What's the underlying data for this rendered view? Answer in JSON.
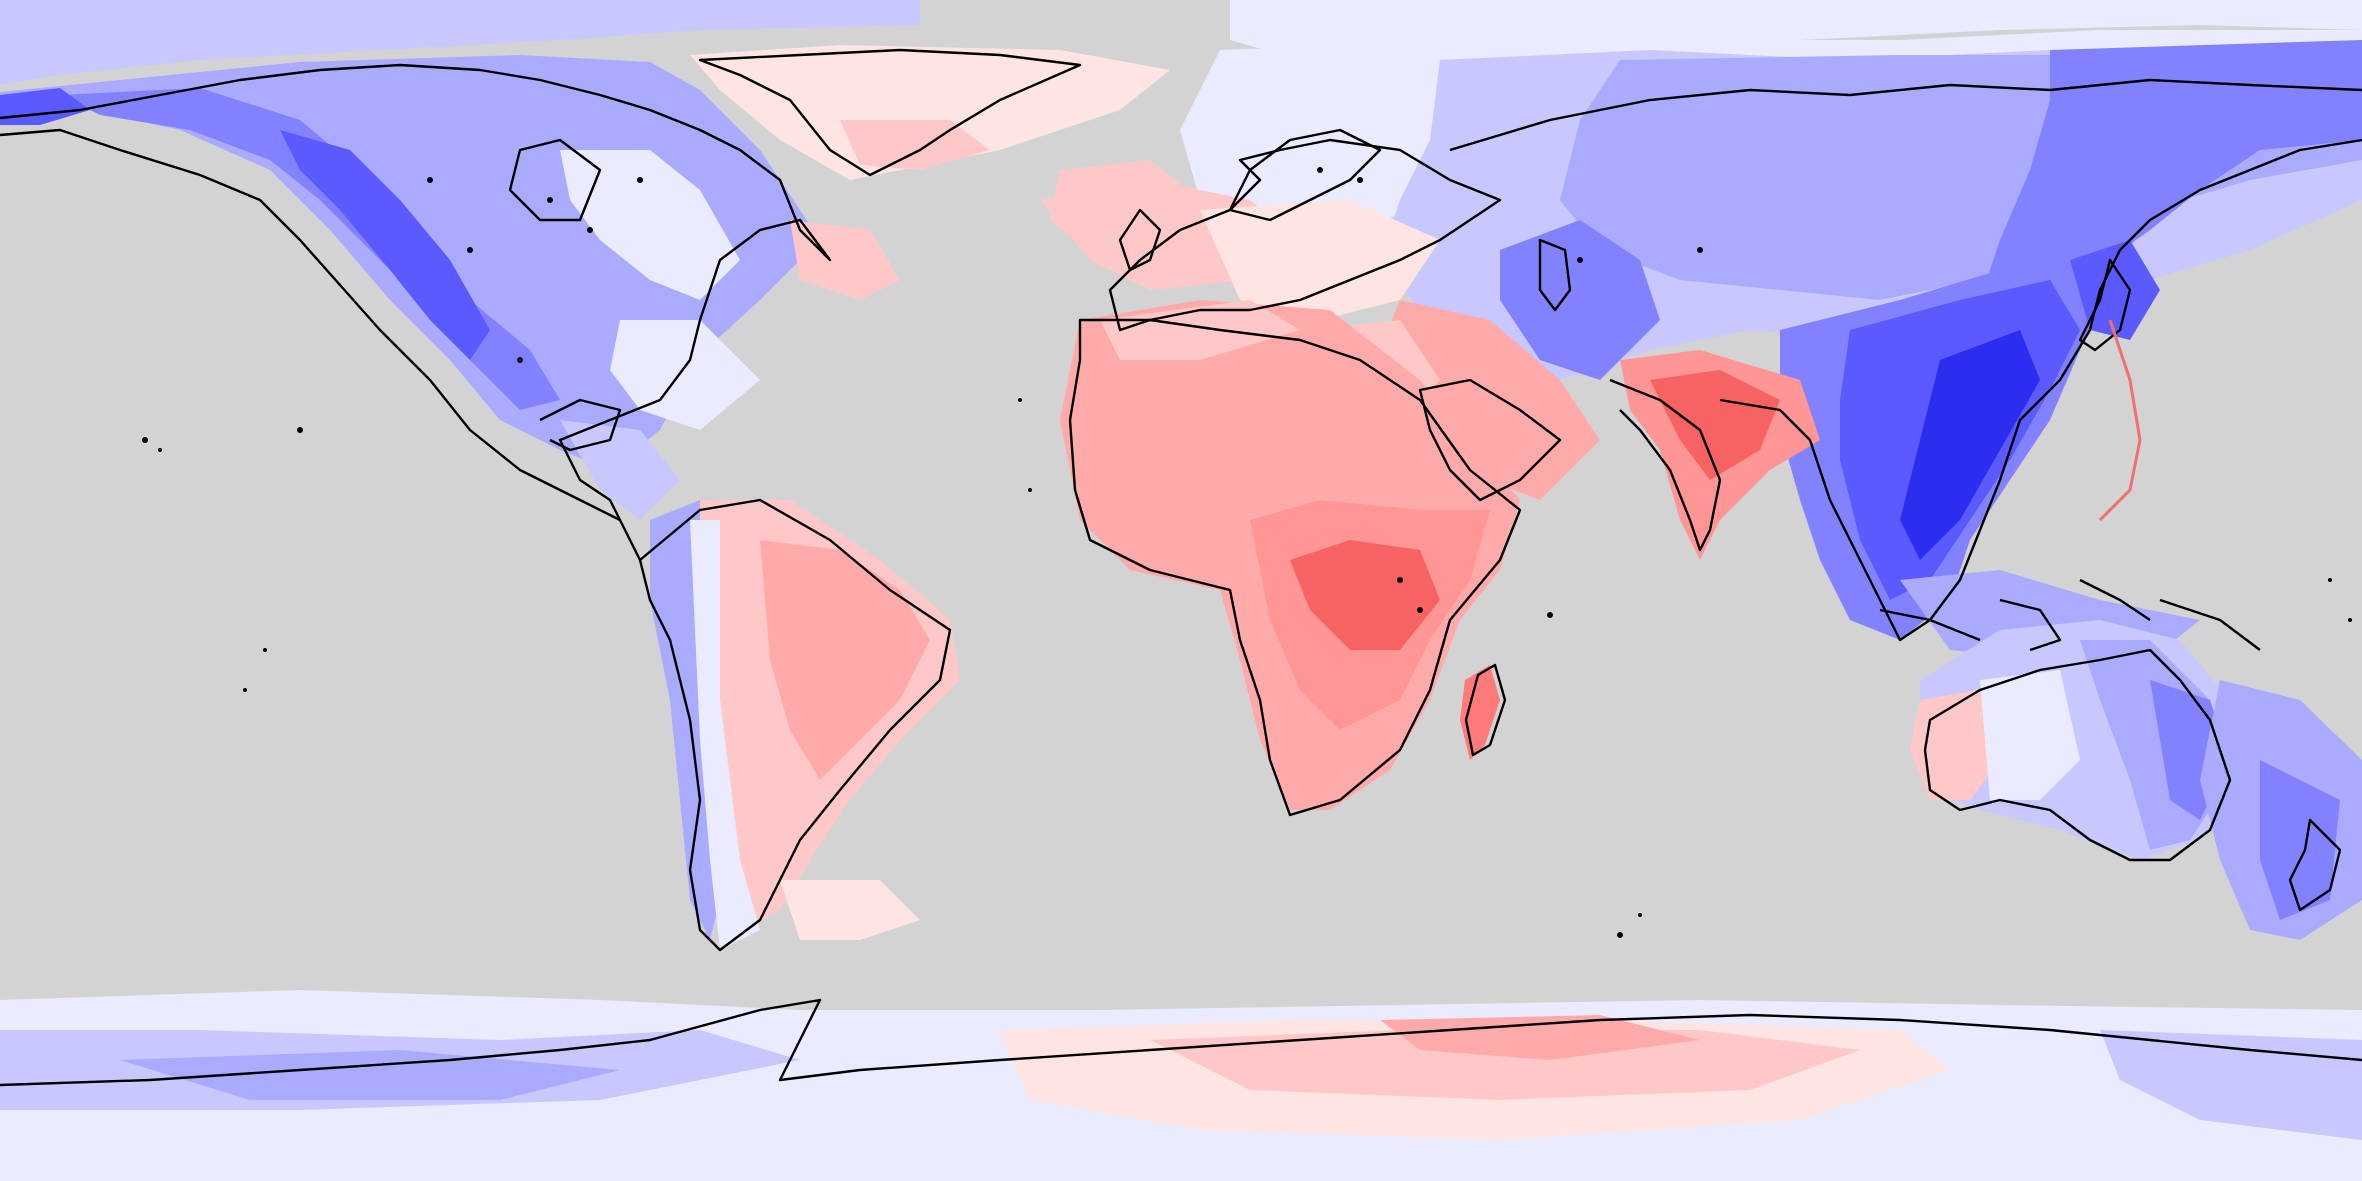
{
  "map": {
    "projection": "equirectangular",
    "coverage": "global",
    "legend": null,
    "colors": {
      "background": "#d3d3d3",
      "neutral": "#ebebff",
      "coastline": "#000000",
      "blue_scale": [
        "#e4e4ff",
        "#c8c8ff",
        "#aaaaff",
        "#8282ff",
        "#5a5aff",
        "#2d2df0"
      ],
      "red_scale": [
        "#ffe4e4",
        "#ffc8c8",
        "#ffaaaa",
        "#ff9696",
        "#ff7a7a",
        "#f76262"
      ]
    },
    "regions": [
      {
        "name": "north-america",
        "sign": "negative"
      },
      {
        "name": "greenland",
        "sign": "positive"
      },
      {
        "name": "south-america-east",
        "sign": "positive"
      },
      {
        "name": "south-america-west",
        "sign": "negative"
      },
      {
        "name": "europe-west",
        "sign": "positive"
      },
      {
        "name": "africa",
        "sign": "positive"
      },
      {
        "name": "arabia",
        "sign": "positive"
      },
      {
        "name": "india",
        "sign": "positive"
      },
      {
        "name": "russia-central-asia",
        "sign": "negative"
      },
      {
        "name": "east-asia",
        "sign": "negative"
      },
      {
        "name": "southeast-asia",
        "sign": "negative"
      },
      {
        "name": "australia",
        "sign": "negative"
      },
      {
        "name": "antarctica-west",
        "sign": "negative"
      },
      {
        "name": "antarctica-east-plateau",
        "sign": "positive"
      }
    ]
  }
}
